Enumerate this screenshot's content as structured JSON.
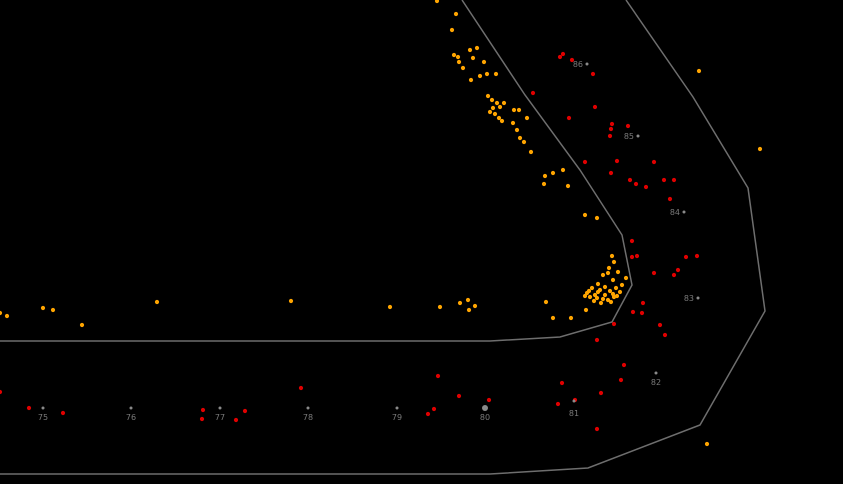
{
  "colors": {
    "background": "#000000",
    "track_outline": "#6e6e6e",
    "marker_dot": "#8a8a8a",
    "marker_label": "#7a7a7a",
    "orange_points": "#ffa500",
    "red_points": "#e00000"
  },
  "distance_markers": [
    {
      "label": "75"
    },
    {
      "label": "76"
    },
    {
      "label": "77"
    },
    {
      "label": "78"
    },
    {
      "label": "79"
    },
    {
      "label": "80"
    },
    {
      "label": "81"
    },
    {
      "label": "82"
    },
    {
      "label": "83"
    },
    {
      "label": "84"
    },
    {
      "label": "85"
    },
    {
      "label": "86"
    }
  ]
}
